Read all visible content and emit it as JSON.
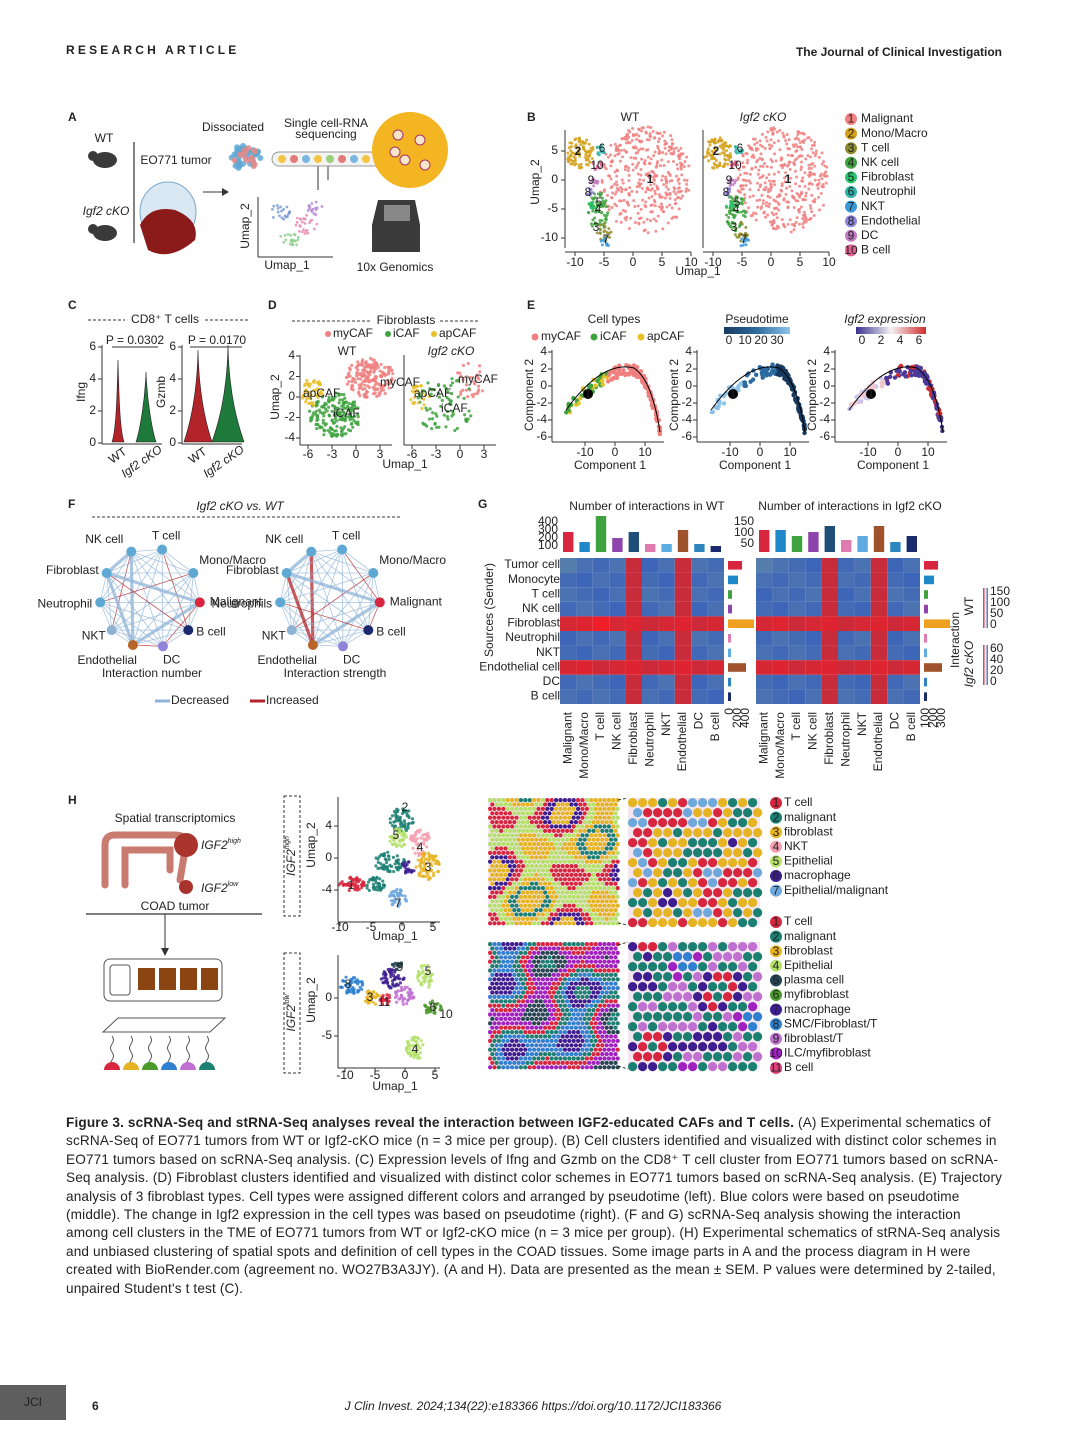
{
  "header": {
    "section": "RESEARCH ARTICLE",
    "journal": "The Journal of Clinical Investigation"
  },
  "panel_a": {
    "label": "A",
    "wt": "WT",
    "cko": "Igf2 cKO",
    "tumor": "EO771 tumor",
    "dissociated": "Dissociated",
    "sequencing": [
      "Single cell-RNA",
      "sequencing"
    ],
    "umap_y": "Umap_2",
    "umap_x": "Umap_1",
    "platform": "10x Genomics"
  },
  "panel_b": {
    "label": "B",
    "groups": [
      "WT",
      "Igf2 cKO"
    ],
    "x_label": "Umap_1",
    "y_label": "Umap_2",
    "yticks": [
      5,
      0,
      -5,
      -10
    ],
    "xticks": [
      -10,
      -5,
      0,
      5,
      10
    ],
    "cluster_labels": [
      "1",
      "2",
      "6",
      "10",
      "9",
      "8",
      "4",
      "5",
      "3",
      "7"
    ],
    "legend": [
      {
        "key": "1",
        "name": "Malignant",
        "color": "#f08080"
      },
      {
        "key": "2",
        "name": "Mono/Macro",
        "color": "#d4a017"
      },
      {
        "key": "3",
        "name": "T cell",
        "color": "#8c8c2e"
      },
      {
        "key": "4",
        "name": "NK cell",
        "color": "#3ea33e"
      },
      {
        "key": "5",
        "name": "Fibroblast",
        "color": "#27c46b"
      },
      {
        "key": "6",
        "name": "Neutrophil",
        "color": "#2fb3a8"
      },
      {
        "key": "7",
        "name": "NKT",
        "color": "#3a9ad9"
      },
      {
        "key": "8",
        "name": "Endothelial",
        "color": "#8f84d8"
      },
      {
        "key": "9",
        "name": "DC",
        "color": "#c27ac2"
      },
      {
        "key": "10",
        "name": "B cell",
        "color": "#e0608f"
      }
    ]
  },
  "panel_c": {
    "label": "C",
    "title": "CD8⁺ T cells",
    "p_values": [
      "P = 0.0302",
      "P = 0.0170"
    ],
    "y_labels": [
      "Ifng",
      "Gzmb"
    ],
    "yticks": [
      6,
      4,
      2,
      0
    ],
    "groups": [
      "WT",
      "Igf2 cKO"
    ]
  },
  "panel_d": {
    "label": "D",
    "title": "Fibroblasts",
    "legend": [
      {
        "name": "myCAF",
        "color": "#f08080"
      },
      {
        "name": "iCAF",
        "color": "#3ea33e"
      },
      {
        "name": "apCAF",
        "color": "#e8c02a"
      }
    ],
    "groups": [
      "WT",
      "Igf2 cKO"
    ],
    "x_label": "Umap_1",
    "y_label": "Umap_2",
    "yticks": [
      4,
      2,
      0,
      -2,
      -4
    ],
    "xticks": [
      -6,
      -3,
      0,
      3
    ]
  },
  "panel_e": {
    "label": "E",
    "legend_titles": [
      "Cell types",
      "Pseudotime",
      "Igf2 expression"
    ],
    "pseudotime_ticks": [
      0,
      10,
      20,
      30
    ],
    "expression_ticks": [
      0,
      2,
      4,
      6
    ],
    "x_label": "Component 1",
    "y_label": "Component 2",
    "yticks": [
      4,
      2,
      0,
      -2,
      -4,
      -6
    ],
    "xticks": [
      -10,
      0,
      10
    ],
    "branch_point": "1"
  },
  "panel_f": {
    "label": "F",
    "title": "Igf2 cKO vs. WT",
    "nodes_left": [
      "NK cell",
      "T cell",
      "Mono/Macro",
      "Malignant",
      "B cell",
      "DC",
      "Endothelial",
      "NKT",
      "Neutrophil",
      "Fibroblast"
    ],
    "nodes_right": [
      "NK cell",
      "T cell",
      "Mono/Macro",
      "Malignant",
      "B cell",
      "DC",
      "Endothelial",
      "NKT",
      "Neutrophils",
      "Fibroblast"
    ],
    "subtitles": [
      "Interaction number",
      "Interaction strength"
    ],
    "legend": [
      "Decreased",
      "Increased"
    ]
  },
  "panel_g": {
    "label": "G",
    "titles": [
      "Number of interactions in WT",
      "Number of interactions in Igf2 cKO"
    ],
    "y_title": "Sources (Sender)",
    "rows": [
      "Tumor cell",
      "Monocyte",
      "T cell",
      "NK cell",
      "Fibroblast",
      "Neutrophil",
      "NKT",
      "Endothelial cell",
      "DC",
      "B cell"
    ],
    "columns": [
      "Malignant",
      "Mono/Macro",
      "T cell",
      "NK cell",
      "Fibroblast",
      "Neutrophil",
      "NKT",
      "Endothelial",
      "DC",
      "B cell"
    ],
    "bar_ticks_wt": [
      400,
      300,
      200,
      100
    ],
    "bar_ticks_cko": [
      150,
      100,
      50
    ],
    "side_ticks_wt": [
      0,
      200,
      400
    ],
    "side_ticks_cko": [
      100,
      200,
      300
    ],
    "legend_title": "Interaction",
    "legend_wt": "WT",
    "legend_cko": "Igf2 cKO",
    "scale_wt": [
      150,
      100,
      50,
      0
    ],
    "scale_cko": [
      60,
      40,
      20,
      0
    ]
  },
  "panel_h": {
    "label": "H",
    "title": "Spatial transcriptomics",
    "high": {
      "base": "IGF2",
      "sup": "high"
    },
    "low": {
      "base": "IGF2",
      "sup": "low"
    },
    "tumor": "COAD tumor",
    "x_label": "Umap_1",
    "y_label": "Umap_2",
    "yticks_high": [
      4,
      0,
      -4
    ],
    "xticks_high": [
      -10,
      -5,
      0,
      5
    ],
    "yticks_low": [
      0,
      -5
    ],
    "xticks_low": [
      -10,
      -5,
      0,
      5
    ],
    "legend_high": [
      {
        "key": "1",
        "name": "T cell",
        "color": "#d7263d"
      },
      {
        "key": "2",
        "name": "malignant",
        "color": "#1b7f72"
      },
      {
        "key": "3",
        "name": "fibroblast",
        "color": "#e6b422"
      },
      {
        "key": "4",
        "name": "NKT",
        "color": "#f4a0b0"
      },
      {
        "key": "5",
        "name": "Epithelial",
        "color": "#b5e06a"
      },
      {
        "key": "6",
        "name": "macrophage",
        "color": "#3d1d8f"
      },
      {
        "key": "7",
        "name": "Epithelial/malignant",
        "color": "#6fa8dc"
      }
    ],
    "legend_low": [
      {
        "key": "1",
        "name": "T cell",
        "color": "#d7263d"
      },
      {
        "key": "2",
        "name": "malignant",
        "color": "#1b7f72"
      },
      {
        "key": "3",
        "name": "fibroblast",
        "color": "#e6b422"
      },
      {
        "key": "4",
        "name": "Epithelial",
        "color": "#b5e06a"
      },
      {
        "key": "5",
        "name": "plasma cell",
        "color": "#264653"
      },
      {
        "key": "6",
        "name": "myfibroblast",
        "color": "#4c9a2a"
      },
      {
        "key": "7",
        "name": "macrophage",
        "color": "#3d1d8f"
      },
      {
        "key": "8",
        "name": "SMC/Fibroblast/T",
        "color": "#2f80d0"
      },
      {
        "key": "9",
        "name": "fibroblast/T",
        "color": "#c070d0"
      },
      {
        "key": "10",
        "name": "ILC/myfibroblast",
        "color": "#a020c0"
      },
      {
        "key": "11",
        "name": "B cell",
        "color": "#e0407a"
      }
    ]
  },
  "caption": {
    "title": "Figure 3. scRNA-Seq and stRNA-Seq analyses reveal the interaction between IGF2-educated CAFs and T cells.",
    "body": " (A) Experimental schematics of scRNA-Seq of EO771 tumors from WT or Igf2-cKO mice (n = 3 mice per group). (B) Cell clusters identified and visualized with distinct color schemes in EO771 tumors based on scRNA-Seq analysis. (C) Expression levels of Ifng and Gzmb on the CD8⁺ T cell cluster from EO771 tumors based on scRNA-Seq analysis. (D) Fibroblast clusters identified and visualized with distinct color schemes in EO771 tumors based on scRNA-Seq analysis. (E) Trajectory analysis of 3 fibroblast types. Cell types were assigned different colors and arranged by pseudotime (left). Blue colors were based on pseudotime (middle). The change in Igf2 expression in the cell types was based on pseudotime (right). (F and G) scRNA-Seq analysis showing the interaction among cell clusters in the TME of EO771 tumors from WT or Igf2-cKO mice (n = 3 mice per group). (H) Experimental schematics of stRNA-Seq analysis and unbiased clustering of spatial spots and definition of cell types in the COAD tissues. Some image parts in A and the process diagram in H were created with BioRender.com (agreement no. WO27B3A3JY). (A and H). Data are presented as the mean ± SEM. P values were determined by 2-tailed, unpaired Student's t test (C)."
  },
  "footer": {
    "logo": "JCI",
    "page": "6",
    "citation": "J Clin Invest. 2024;134(22):e183366  https://doi.org/10.1172/JCI183366"
  }
}
